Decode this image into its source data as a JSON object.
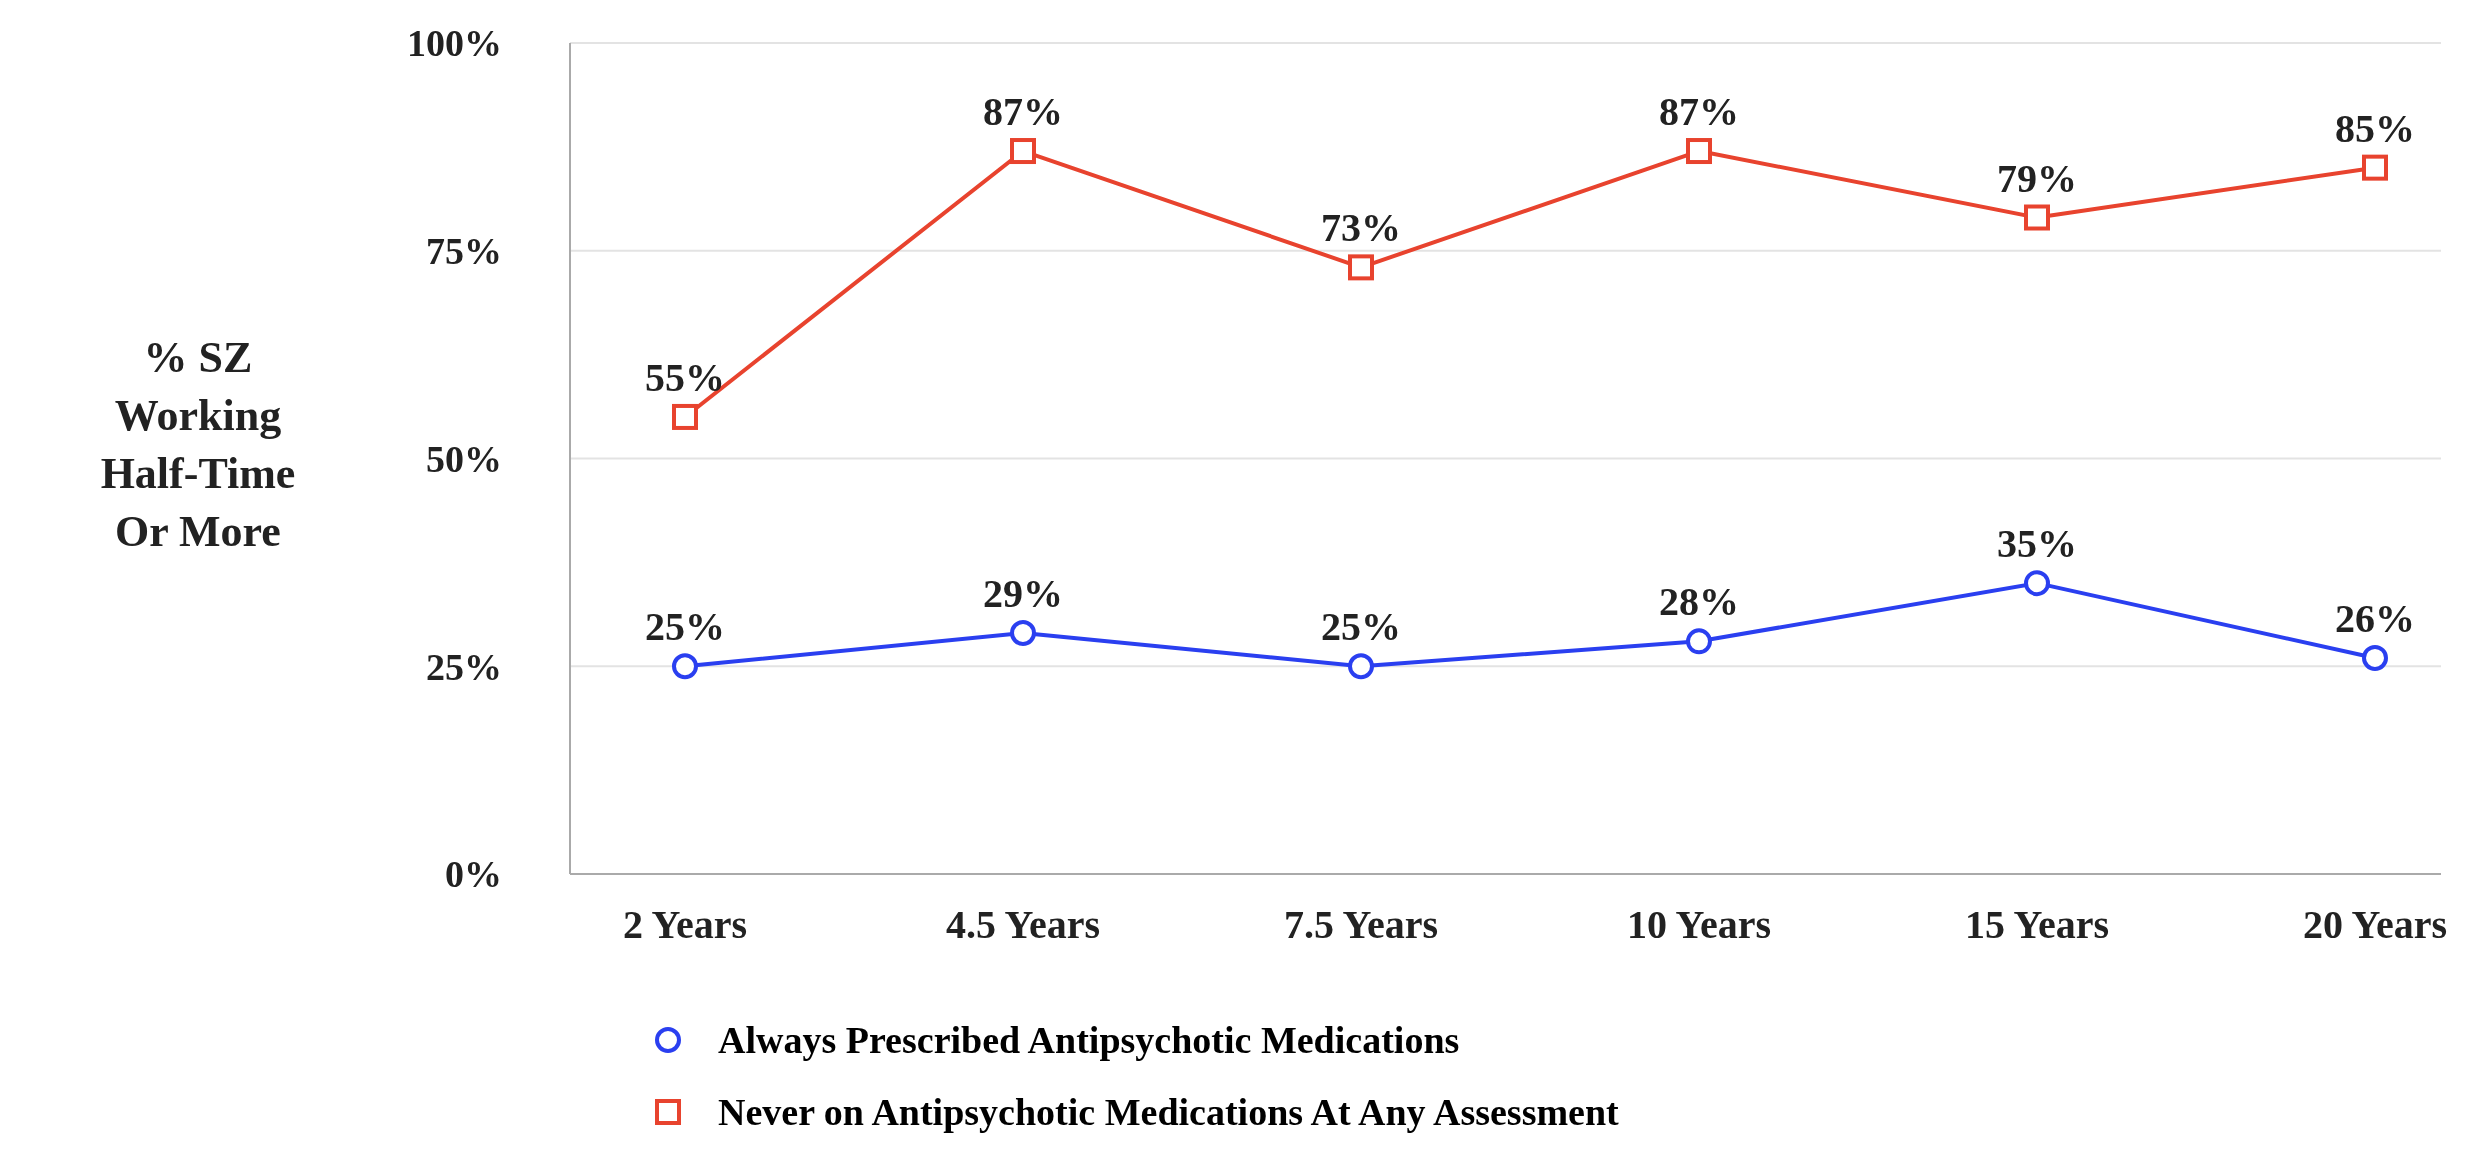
{
  "chart_data": {
    "type": "line",
    "ylabel": "% SZ\nWorking\nHalf-Time\nOr More",
    "categories": [
      "2 Years",
      "4.5 Years",
      "7.5 Years",
      "10 Years",
      "15 Years",
      "20 Years"
    ],
    "series": [
      {
        "name": "Always Prescribed Antipsychotic Medications",
        "color": "#2a3ff0",
        "marker": "circle",
        "values": [
          25,
          29,
          25,
          28,
          35,
          26
        ],
        "value_labels": [
          "25%",
          "29%",
          "25%",
          "28%",
          "35%",
          "26%"
        ]
      },
      {
        "name": "Never on Antipsychotic Medications At Any Assessment",
        "color": "#e8432e",
        "marker": "square",
        "values": [
          55,
          87,
          73,
          87,
          79,
          85
        ],
        "value_labels": [
          "55%",
          "87%",
          "73%",
          "87%",
          "79%",
          "85%"
        ]
      }
    ],
    "ylim": [
      0,
      100
    ],
    "yticks": [
      {
        "value": 0,
        "label": "0%"
      },
      {
        "value": 25,
        "label": "25%"
      },
      {
        "value": 50,
        "label": "50%"
      },
      {
        "value": 75,
        "label": "75%"
      },
      {
        "value": 100,
        "label": "100%"
      }
    ],
    "grid": "y",
    "legend": "bottom",
    "line_style": "solid"
  }
}
